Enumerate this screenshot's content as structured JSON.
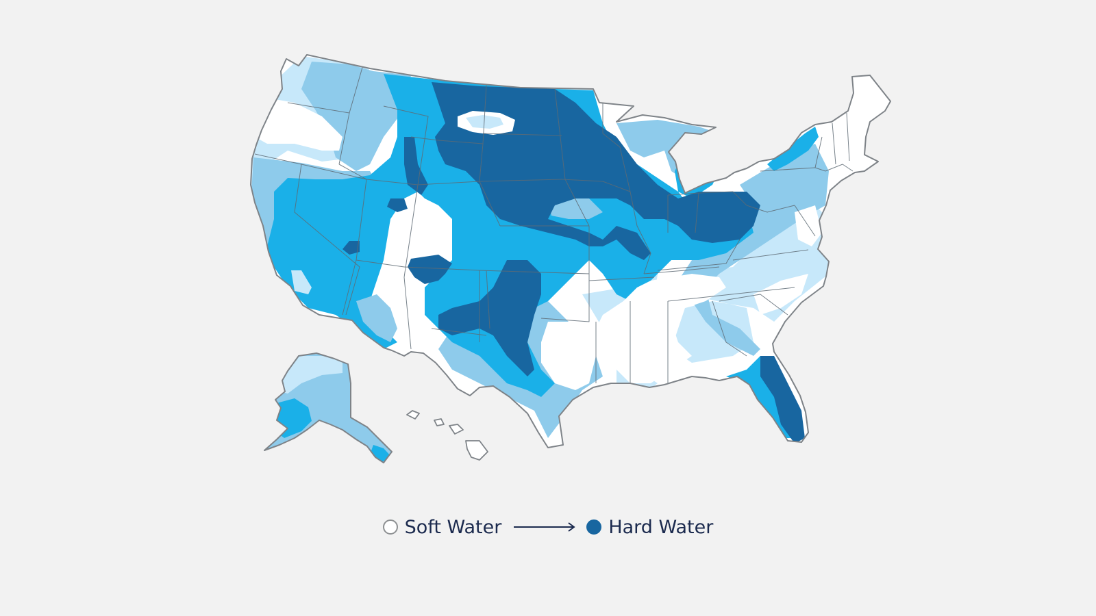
{
  "legend": {
    "low_label": "Soft Water",
    "high_label": "Hard Water",
    "low_color": "#ffffff",
    "high_color": "#1866a0",
    "direction_icon": "arrow-right-icon"
  },
  "palette": {
    "background": "#f2f2f2",
    "level_0_soft": "#ffffff",
    "level_1": "#c7e8fa",
    "level_2": "#8ecbeb",
    "level_3": "#1ab0e8",
    "level_4_hard": "#1866a0",
    "border": "#7e8388",
    "state_lines": "#5f6b75"
  },
  "map": {
    "regions": [
      "contiguous-united-states",
      "alaska",
      "hawaii"
    ],
    "scale_levels": 5
  }
}
